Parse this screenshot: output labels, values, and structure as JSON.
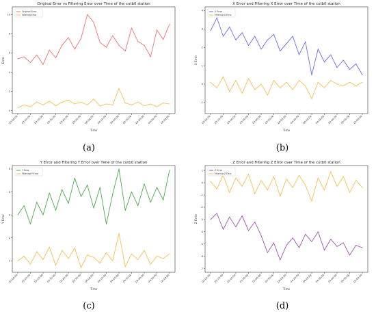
{
  "chart_data": [
    {
      "type": "line",
      "panel": "(a)",
      "title": "Original Error vs Filtering Error over Time of the cutb0 station",
      "xlabel": "Time",
      "ylabel": "Error",
      "ylim": [
        -0.3,
        10.8
      ],
      "yticks": [
        0,
        2,
        4,
        6,
        8,
        10
      ],
      "x": [
        "03:00:00",
        "03:05:00",
        "03:10:00",
        "03:15:00",
        "03:20:00",
        "03:25:00",
        "03:30:00",
        "03:35:00",
        "03:40:00",
        "03:45:00",
        "03:50:00",
        "03:55:00",
        "04:00:00",
        "04:05:00",
        "04:10:00",
        "04:15:00",
        "04:20:00",
        "04:25:00",
        "04:30:00",
        "04:35:00",
        "04:40:00",
        "04:45:00",
        "04:50:00",
        "04:55:00",
        "05:00:00"
      ],
      "xticks": [
        "03:00:00",
        "03:10:00",
        "03:20:00",
        "03:30:00",
        "03:40:00",
        "03:50:00",
        "04:00:00",
        "04:10:00",
        "04:20:00",
        "04:30:00",
        "04:40:00",
        "04:50:00",
        "05:00:00"
      ],
      "legend": "top-left",
      "grid": false,
      "series": [
        {
          "name": "Original Error",
          "color": "#f07070",
          "values": [
            5.4,
            5.6,
            5.0,
            5.8,
            4.8,
            6.3,
            5.5,
            6.8,
            7.6,
            6.4,
            7.5,
            10.0,
            9.2,
            7.1,
            6.6,
            7.8,
            6.8,
            6.2,
            8.6,
            7.2,
            6.8,
            5.6,
            8.4,
            7.4,
            9.0
          ]
        },
        {
          "name": "Filtering Error",
          "color": "#f6bf50",
          "values": [
            0.3,
            0.6,
            0.4,
            0.9,
            0.6,
            1.0,
            0.5,
            0.9,
            1.1,
            0.7,
            0.9,
            0.6,
            1.2,
            0.5,
            0.7,
            0.6,
            2.3,
            0.8,
            0.6,
            0.9,
            0.5,
            0.7,
            0.4,
            0.8,
            0.7
          ]
        }
      ]
    },
    {
      "type": "line",
      "panel": "(b)",
      "title": "X Error and Filtering X Error over Time of the cutb0 station",
      "xlabel": "Time",
      "ylabel": "X Error",
      "ylim": [
        -1.6,
        4.2
      ],
      "yticks": [
        -1,
        0,
        1,
        2,
        3,
        4
      ],
      "x": [
        "03:00:00",
        "03:05:00",
        "03:10:00",
        "03:15:00",
        "03:20:00",
        "03:25:00",
        "03:30:00",
        "03:35:00",
        "03:40:00",
        "03:45:00",
        "03:50:00",
        "03:55:00",
        "04:00:00",
        "04:05:00",
        "04:10:00",
        "04:15:00",
        "04:20:00",
        "04:25:00",
        "04:30:00",
        "04:35:00",
        "04:40:00",
        "04:45:00",
        "04:50:00",
        "04:55:00",
        "05:00:00"
      ],
      "xticks": [
        "03:00:00",
        "03:10:00",
        "03:20:00",
        "03:30:00",
        "03:40:00",
        "03:50:00",
        "04:00:00",
        "04:10:00",
        "04:20:00",
        "04:30:00",
        "04:40:00",
        "04:50:00",
        "05:00:00"
      ],
      "legend": "top-left",
      "grid": false,
      "series": [
        {
          "name": "X Error",
          "color": "#6a6ae8",
          "values": [
            2.9,
            3.6,
            2.6,
            3.1,
            2.4,
            2.8,
            2.1,
            2.6,
            1.9,
            2.4,
            2.7,
            1.8,
            2.2,
            2.6,
            1.6,
            2.3,
            0.5,
            1.9,
            1.2,
            1.6,
            0.9,
            1.3,
            0.8,
            1.1,
            0.5
          ]
        },
        {
          "name": "Filtering X Error",
          "color": "#f6bf50",
          "values": [
            0.1,
            -0.2,
            0.4,
            -0.4,
            0.2,
            -0.5,
            0.3,
            -0.3,
            0.0,
            -0.6,
            0.2,
            -0.2,
            0.1,
            -0.3,
            0.2,
            -0.1,
            -0.8,
            0.1,
            -0.2,
            0.2,
            0.0,
            -0.1,
            0.1,
            -0.1,
            0.1
          ]
        }
      ]
    },
    {
      "type": "line",
      "panel": "(c)",
      "title": "Y Error and Filtering Y Error over Time of the cutb0 station",
      "xlabel": "Time",
      "ylabel": "Y Error",
      "ylim": [
        -1.0,
        8.3
      ],
      "yticks": [
        0,
        2,
        4,
        6,
        8
      ],
      "x": [
        "03:00:00",
        "03:05:00",
        "03:10:00",
        "03:15:00",
        "03:20:00",
        "03:25:00",
        "03:30:00",
        "03:35:00",
        "03:40:00",
        "03:45:00",
        "03:50:00",
        "03:55:00",
        "04:00:00",
        "04:05:00",
        "04:10:00",
        "04:15:00",
        "04:20:00",
        "04:25:00",
        "04:30:00",
        "04:35:00",
        "04:40:00",
        "04:45:00",
        "04:50:00",
        "04:55:00",
        "05:00:00"
      ],
      "xticks": [
        "03:00:00",
        "03:10:00",
        "03:20:00",
        "03:30:00",
        "03:40:00",
        "03:50:00",
        "04:00:00",
        "04:10:00",
        "04:20:00",
        "04:30:00",
        "04:40:00",
        "04:50:00",
        "05:00:00"
      ],
      "legend": "top-left",
      "grid": false,
      "series": [
        {
          "name": "Y Error",
          "color": "#4aa84a",
          "values": [
            4.0,
            4.8,
            3.2,
            5.1,
            4.0,
            5.9,
            4.4,
            6.2,
            5.0,
            7.2,
            5.6,
            6.6,
            4.6,
            6.4,
            3.2,
            5.8,
            8.0,
            4.4,
            6.0,
            4.8,
            6.7,
            5.1,
            6.4,
            5.3,
            7.9
          ]
        },
        {
          "name": "Filtering Y Error",
          "color": "#f6bf50",
          "values": [
            0.0,
            0.4,
            -0.3,
            0.8,
            0.1,
            1.2,
            -0.4,
            0.9,
            0.2,
            1.1,
            -0.6,
            0.5,
            0.3,
            -0.2,
            0.7,
            0.0,
            2.4,
            -0.5,
            0.6,
            0.1,
            0.9,
            -0.3,
            0.4,
            0.2,
            0.6
          ]
        }
      ]
    },
    {
      "type": "line",
      "panel": "(d)",
      "title": "Z Error and Filtering Z Error over Time of the cutb0 station",
      "xlabel": "Time",
      "ylabel": "Z Error",
      "ylim": [
        -7.3,
        1.4
      ],
      "yticks": [
        -7,
        -6,
        -5,
        -4,
        -3,
        -2,
        -1,
        0,
        1
      ],
      "x": [
        "03:00:00",
        "03:05:00",
        "03:10:00",
        "03:15:00",
        "03:20:00",
        "03:25:00",
        "03:30:00",
        "03:35:00",
        "03:40:00",
        "03:45:00",
        "03:50:00",
        "03:55:00",
        "04:00:00",
        "04:05:00",
        "04:10:00",
        "04:15:00",
        "04:20:00",
        "04:25:00",
        "04:30:00",
        "04:35:00",
        "04:40:00",
        "04:45:00",
        "04:50:00",
        "04:55:00",
        "05:00:00"
      ],
      "xticks": [
        "03:00:00",
        "03:10:00",
        "03:20:00",
        "03:30:00",
        "03:40:00",
        "03:50:00",
        "04:00:00",
        "04:10:00",
        "04:20:00",
        "04:30:00",
        "04:40:00",
        "04:50:00",
        "05:00:00"
      ],
      "legend": "top-left",
      "grid": false,
      "series": [
        {
          "name": "Z Error",
          "color": "#a050b0",
          "values": [
            -3.0,
            -2.5,
            -3.8,
            -2.8,
            -3.6,
            -2.7,
            -3.9,
            -3.2,
            -4.3,
            -5.7,
            -4.9,
            -6.3,
            -5.1,
            -4.5,
            -5.3,
            -4.2,
            -4.8,
            -4.0,
            -5.5,
            -4.6,
            -5.2,
            -4.9,
            -5.9,
            -5.1,
            -5.3
          ]
        },
        {
          "name": "Filtering Z Error",
          "color": "#f6bf50",
          "values": [
            0.1,
            -0.5,
            0.6,
            -0.8,
            0.4,
            -0.3,
            0.7,
            -0.9,
            0.2,
            -0.6,
            0.5,
            -1.1,
            0.3,
            -0.4,
            0.6,
            -0.2,
            -1.5,
            0.4,
            -0.6,
            0.9,
            -0.3,
            0.5,
            -0.8,
            0.2,
            -0.4
          ]
        }
      ]
    }
  ]
}
